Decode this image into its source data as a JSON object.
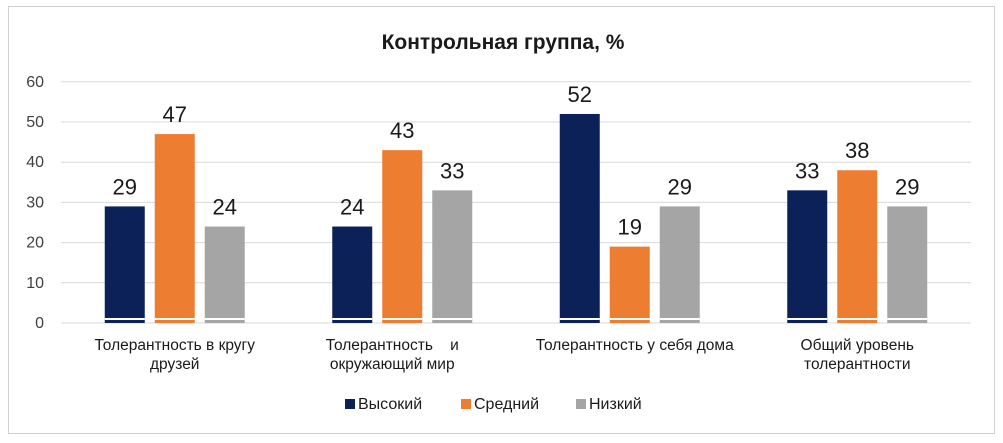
{
  "chart_data": {
    "type": "bar",
    "title": "Контрольная группа, %",
    "categories": [
      [
        "Толерантность в кругу",
        "друзей"
      ],
      [
        "Толерантность    и",
        "окружающий мир"
      ],
      [
        "Толерантность у себя дома"
      ],
      [
        "Общий уровень",
        "толерантности"
      ]
    ],
    "series": [
      {
        "name": "Высокий",
        "color": "#0d2159",
        "values": [
          29,
          24,
          52,
          33
        ]
      },
      {
        "name": "Средний",
        "color": "#ed7d31",
        "values": [
          47,
          43,
          19,
          38
        ]
      },
      {
        "name": "Низкий",
        "color": "#a5a5a5",
        "values": [
          24,
          33,
          29,
          29
        ]
      }
    ],
    "yticks": [
      "0",
      "10",
      "20",
      "30",
      "40",
      "50",
      "60"
    ],
    "ylim": [
      0,
      60
    ],
    "grid": true,
    "legend_position": "bottom",
    "xlabel": "",
    "ylabel": ""
  }
}
